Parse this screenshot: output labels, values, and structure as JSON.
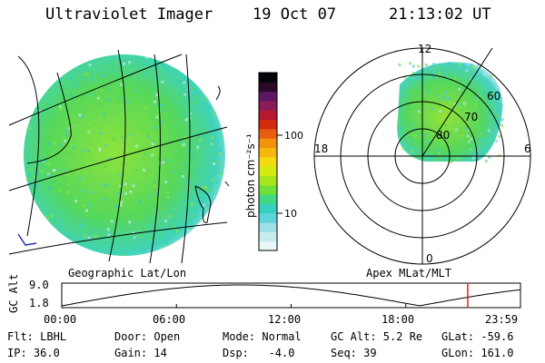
{
  "header": {
    "instrument": "Ultraviolet Imager",
    "date": "19 Oct 07",
    "time": "21:13:02 UT"
  },
  "geo_panel": {
    "label": "Geographic Lat/Lon"
  },
  "colorbar": {
    "unit_label": "photon cm⁻²s⁻¹",
    "ticks": [
      "100",
      "10"
    ],
    "colors": [
      "#e8f6f6",
      "#c8ecee",
      "#9ee0e6",
      "#5fd3dc",
      "#36cfc0",
      "#41d882",
      "#6ee03a",
      "#a6e61e",
      "#d4ea12",
      "#f2dc10",
      "#f7b80e",
      "#f3920d",
      "#e95d10",
      "#d42a10",
      "#b51830",
      "#8a1a58",
      "#5b1860",
      "#2a0a28",
      "#05040a"
    ]
  },
  "polar_panel": {
    "label": "Apex MLat/MLT",
    "mlt_labels": [
      "12",
      "18",
      "6",
      "0"
    ],
    "lat_labels": [
      "60",
      "70",
      "80"
    ]
  },
  "orbit": {
    "axis_label": "GC Alt",
    "y_ticks": [
      "9.0",
      "1.8"
    ],
    "x_ticks": [
      "00:00",
      "06:00",
      "12:00",
      "18:00",
      "23:59"
    ],
    "current_time_fraction": 0.885
  },
  "footer": {
    "rows": [
      [
        "Flt: LBHL",
        "Door: Open",
        "Mode: Normal",
        "GC Alt: 5.2 Re",
        "GLat: -59.6"
      ],
      [
        "IP: 36.0",
        "Gain: 14",
        "Dsp:   -4.0",
        "Seq: 39",
        "GLon: 161.0"
      ]
    ]
  }
}
